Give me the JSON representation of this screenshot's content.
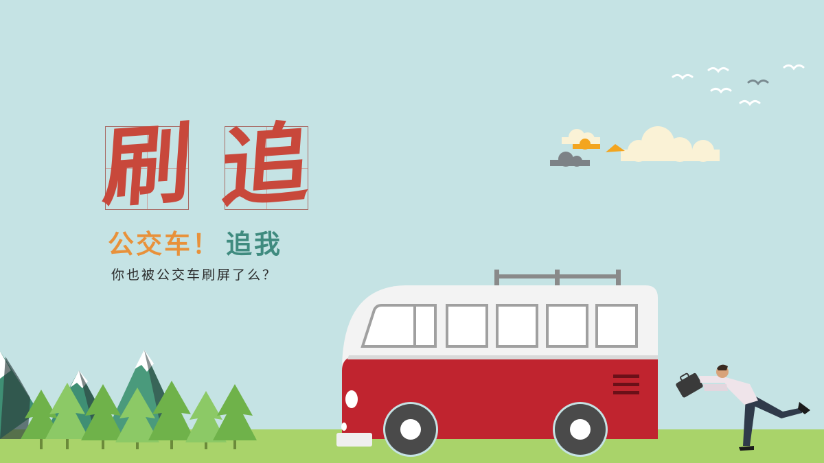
{
  "title": {
    "char1": "刷",
    "char2": "追"
  },
  "subtitle": {
    "part1": "公交车！",
    "part2": "追我"
  },
  "caption": "你也被公交车刷屏了么？",
  "colors": {
    "sky": "#c5e3e4",
    "grass": "#a9d36a",
    "bus_red": "#c0242f",
    "title_red": "#c8483b",
    "subtitle_orange": "#e8913a",
    "subtitle_teal": "#3f8b7f",
    "tree_green": "#7cbf54",
    "mountain": "#4a9a7c"
  }
}
